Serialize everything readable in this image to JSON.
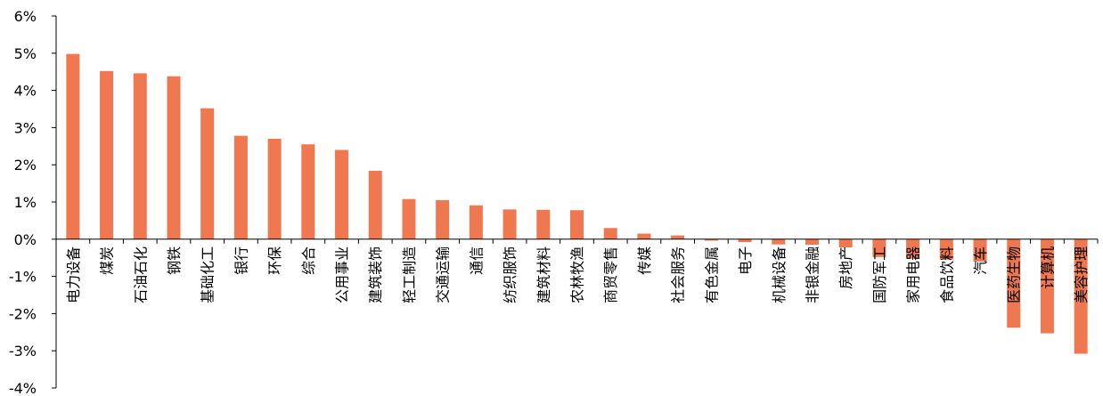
{
  "chart_data": {
    "type": "bar",
    "title": "",
    "xlabel": "",
    "ylabel": "",
    "ylim": [
      -4,
      6
    ],
    "y_ticks": [
      "6%",
      "5%",
      "4%",
      "3%",
      "2%",
      "1%",
      "0%",
      "-1%",
      "-2%",
      "-3%",
      "-4%"
    ],
    "y_tick_values": [
      6,
      5,
      4,
      3,
      2,
      1,
      0,
      -1,
      -2,
      -3,
      -4
    ],
    "grid": false,
    "legend": "none",
    "bar_color": "#F07850",
    "categories": [
      "电力设备",
      "煤炭",
      "石油石化",
      "钢铁",
      "基础化工",
      "银行",
      "环保",
      "综合",
      "公用事业",
      "建筑装饰",
      "轻工制造",
      "交通运输",
      "通信",
      "纺织服饰",
      "建筑材料",
      "农林牧渔",
      "商贸零售",
      "传媒",
      "社会服务",
      "有色金属",
      "电子",
      "机械设备",
      "非银金融",
      "房地产",
      "国防军工",
      "家用电器",
      "食品饮料",
      "汽车",
      "医药生物",
      "计算机",
      "美容护理"
    ],
    "values": [
      4.98,
      4.52,
      4.46,
      4.38,
      3.52,
      2.78,
      2.7,
      2.55,
      2.4,
      1.84,
      1.08,
      1.05,
      0.91,
      0.8,
      0.79,
      0.78,
      0.3,
      0.15,
      0.1,
      -0.04,
      -0.08,
      -0.14,
      -0.15,
      -0.22,
      -0.48,
      -0.52,
      -0.55,
      -0.6,
      -2.38,
      -2.53,
      -3.08
    ]
  }
}
